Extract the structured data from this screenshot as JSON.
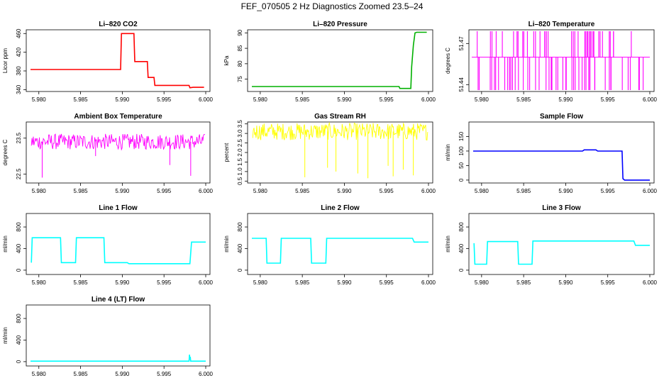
{
  "page": {
    "title": "FEF_070505  2 Hz Diagnostics Zoomed 23.5–24"
  },
  "chart_data": [
    {
      "type": "line",
      "title": "Li–820 CO2",
      "ylabel": "Licor ppm",
      "color": "#ff0000",
      "xlim": [
        5.979,
        6.0
      ],
      "xticks": [
        "5.980",
        "5.985",
        "5.990",
        "5.995",
        "6.000"
      ],
      "xtick_values": [
        5.98,
        5.985,
        5.99,
        5.995,
        6.0
      ],
      "ylim": [
        336,
        468
      ],
      "yticks": [
        "340",
        "380",
        "420",
        "460"
      ],
      "ytick_values": [
        340,
        380,
        420,
        460
      ],
      "series": [
        {
          "x": [
            5.979,
            5.9898,
            5.9899,
            5.9914,
            5.9915,
            5.993,
            5.9931,
            5.9938,
            5.9939,
            5.997,
            5.998,
            5.9981,
            5.9985,
            5.9998
          ],
          "y": [
            383,
            383,
            460,
            460,
            400,
            400,
            366,
            366,
            349,
            349,
            349,
            344,
            345,
            345
          ]
        }
      ]
    },
    {
      "type": "line",
      "title": "Li–820 Pressure",
      "ylabel": "kPa",
      "color": "#00b000",
      "xlim": [
        5.979,
        6.0
      ],
      "xticks": [
        "5.980",
        "5.985",
        "5.990",
        "5.995",
        "6.000"
      ],
      "xtick_values": [
        5.98,
        5.985,
        5.99,
        5.995,
        6.0
      ],
      "ylim": [
        71,
        91
      ],
      "yticks": [
        "75",
        "80",
        "85",
        "90"
      ],
      "ytick_values": [
        75,
        80,
        85,
        90
      ],
      "series": [
        {
          "x": [
            5.979,
            5.9965,
            5.9966,
            5.9979,
            5.998,
            5.9982,
            5.9984,
            5.9986,
            5.9998
          ],
          "y": [
            72.6,
            72.6,
            72.0,
            72.0,
            79.0,
            86.0,
            90.0,
            90.2,
            90.2
          ]
        }
      ]
    },
    {
      "type": "line",
      "title": "Li–820 Temperature",
      "ylabel": "degrees C",
      "color": "#ff00ff",
      "xlim": [
        5.979,
        6.0
      ],
      "xticks": [
        "5.980",
        "5.985",
        "5.990",
        "5.995",
        "6.000"
      ],
      "xtick_values": [
        5.98,
        5.985,
        5.99,
        5.995,
        6.0
      ],
      "ylim": [
        51.435,
        51.48
      ],
      "yticks": [
        "51.44",
        "51.47"
      ],
      "ytick_values": [
        51.44,
        51.47
      ],
      "baseline": 51.46,
      "levels": [
        51.44,
        51.46,
        51.48
      ]
    },
    {
      "type": "line",
      "title": "Ambient Box Temperature",
      "ylabel": "degrees C",
      "color": "#ff00ff",
      "xlim": [
        5.979,
        6.0
      ],
      "xticks": [
        "5.980",
        "5.985",
        "5.990",
        "5.995",
        "6.000"
      ],
      "xtick_values": [
        5.98,
        5.985,
        5.99,
        5.995,
        6.0
      ],
      "ylim": [
        22.25,
        23.95
      ],
      "yticks": [
        "22.5",
        "23.5"
      ],
      "ytick_values": [
        22.5,
        23.5
      ],
      "mean": 23.4,
      "spread": 0.22,
      "spikes": [
        {
          "x": 5.9804,
          "y": 22.4
        },
        {
          "x": 5.9957,
          "y": 22.75
        },
        {
          "x": 5.9982,
          "y": 22.45
        },
        {
          "x": 5.9868,
          "y": 23.0
        }
      ]
    },
    {
      "type": "line",
      "title": "Gas Stream RH",
      "ylabel": "percent",
      "color": "#ffff00",
      "xlim": [
        5.979,
        6.0
      ],
      "xticks": [
        "5.980",
        "5.985",
        "5.990",
        "5.995",
        "6.000"
      ],
      "xtick_values": [
        5.98,
        5.985,
        5.99,
        5.995,
        6.0
      ],
      "ylim": [
        0.4,
        3.6
      ],
      "yticks": [
        "0.5",
        "1.0",
        "1.5",
        "2.0",
        "2.5",
        "3.0",
        "3.5"
      ],
      "ytick_values": [
        0.5,
        1.0,
        1.5,
        2.0,
        2.5,
        3.0,
        3.5
      ],
      "mean": 3.1,
      "spread": 0.45,
      "spikes": [
        {
          "x": 5.9853,
          "y": 0.7
        },
        {
          "x": 5.988,
          "y": 1.2
        },
        {
          "x": 5.989,
          "y": 1.0
        },
        {
          "x": 5.9916,
          "y": 0.9
        },
        {
          "x": 5.9928,
          "y": 0.65
        },
        {
          "x": 5.9952,
          "y": 1.3
        },
        {
          "x": 5.9958,
          "y": 0.75
        },
        {
          "x": 5.997,
          "y": 1.1
        },
        {
          "x": 5.9982,
          "y": 0.8
        }
      ]
    },
    {
      "type": "line",
      "title": "Sample Flow",
      "ylabel": "ml/min",
      "color": "#0000ff",
      "xlim": [
        5.979,
        6.0
      ],
      "xticks": [
        "5.980",
        "5.985",
        "5.990",
        "5.995",
        "6.000"
      ],
      "xtick_values": [
        5.98,
        5.985,
        5.99,
        5.995,
        6.0
      ],
      "ylim": [
        -10,
        200
      ],
      "yticks": [
        "0",
        "50",
        "100",
        "150"
      ],
      "ytick_values": [
        0,
        50,
        100,
        150
      ],
      "series": [
        {
          "x": [
            5.979,
            5.992,
            5.9922,
            5.9936,
            5.9938,
            5.9967,
            5.9968,
            5.997,
            6.0
          ],
          "y": [
            100,
            100,
            104,
            104,
            100,
            100,
            5,
            0,
            0
          ]
        }
      ]
    },
    {
      "type": "line",
      "title": "Line 1 Flow",
      "ylabel": "ml/min",
      "color": "#00ffff",
      "xlim": [
        5.979,
        6.0
      ],
      "xticks": [
        "5.980",
        "5.985",
        "5.990",
        "5.995",
        "6.000"
      ],
      "xtick_values": [
        5.98,
        5.985,
        5.99,
        5.995,
        6.0
      ],
      "ylim": [
        -80,
        1050
      ],
      "yticks": [
        "0",
        "400",
        "800"
      ],
      "ytick_values": [
        0,
        400,
        800
      ],
      "series": [
        {
          "x": [
            5.9791,
            5.9792,
            5.9826,
            5.9827,
            5.9844,
            5.9845,
            5.9878,
            5.9879,
            5.9906,
            5.9908,
            5.9981,
            5.9983,
            6.0
          ],
          "y": [
            140,
            600,
            600,
            140,
            140,
            600,
            600,
            140,
            140,
            120,
            120,
            520,
            520
          ]
        }
      ]
    },
    {
      "type": "line",
      "title": "Line 2 Flow",
      "ylabel": "ml/min",
      "color": "#00ffff",
      "xlim": [
        5.979,
        6.0
      ],
      "xticks": [
        "5.980",
        "5.985",
        "5.990",
        "5.995",
        "6.000"
      ],
      "xtick_values": [
        5.98,
        5.985,
        5.99,
        5.995,
        6.0
      ],
      "ylim": [
        -80,
        1050
      ],
      "yticks": [
        "0",
        "400",
        "800"
      ],
      "ytick_values": [
        0,
        400,
        800
      ],
      "series": [
        {
          "x": [
            5.979,
            5.9807,
            5.9808,
            5.9824,
            5.9825,
            5.986,
            5.9861,
            5.9878,
            5.9879,
            5.9981,
            5.9983,
            6.0
          ],
          "y": [
            590,
            590,
            130,
            130,
            590,
            590,
            130,
            130,
            590,
            590,
            520,
            520
          ]
        }
      ]
    },
    {
      "type": "line",
      "title": "Line 3 Flow",
      "ylabel": "ml/min",
      "color": "#00ffff",
      "xlim": [
        5.979,
        6.0
      ],
      "xticks": [
        "5.980",
        "5.985",
        "5.990",
        "5.995",
        "6.000"
      ],
      "xtick_values": [
        5.98,
        5.985,
        5.99,
        5.995,
        6.0
      ],
      "ylim": [
        -80,
        1050
      ],
      "yticks": [
        "0",
        "400",
        "800"
      ],
      "ytick_values": [
        0,
        400,
        800
      ],
      "series": [
        {
          "x": [
            5.9791,
            5.9792,
            5.9806,
            5.9807,
            5.9843,
            5.9844,
            5.986,
            5.9861,
            5.9981,
            5.9983,
            6.0
          ],
          "y": [
            500,
            110,
            110,
            530,
            530,
            110,
            110,
            540,
            540,
            460,
            460
          ]
        }
      ]
    },
    {
      "type": "line",
      "title": "Line 4 (LT) Flow",
      "ylabel": "ml/min",
      "color": "#00ffff",
      "xlim": [
        5.979,
        6.0
      ],
      "xticks": [
        "5.980",
        "5.985",
        "5.990",
        "5.995",
        "6.000"
      ],
      "xtick_values": [
        5.98,
        5.985,
        5.99,
        5.995,
        6.0
      ],
      "ylim": [
        -80,
        1050
      ],
      "yticks": [
        "0",
        "400",
        "800"
      ],
      "ytick_values": [
        0,
        400,
        800
      ],
      "series": [
        {
          "x": [
            5.979,
            5.998,
            5.99805,
            5.9981,
            5.99815,
            5.9982,
            6.0
          ],
          "y": [
            10,
            10,
            130,
            40,
            90,
            10,
            10
          ]
        }
      ]
    }
  ]
}
